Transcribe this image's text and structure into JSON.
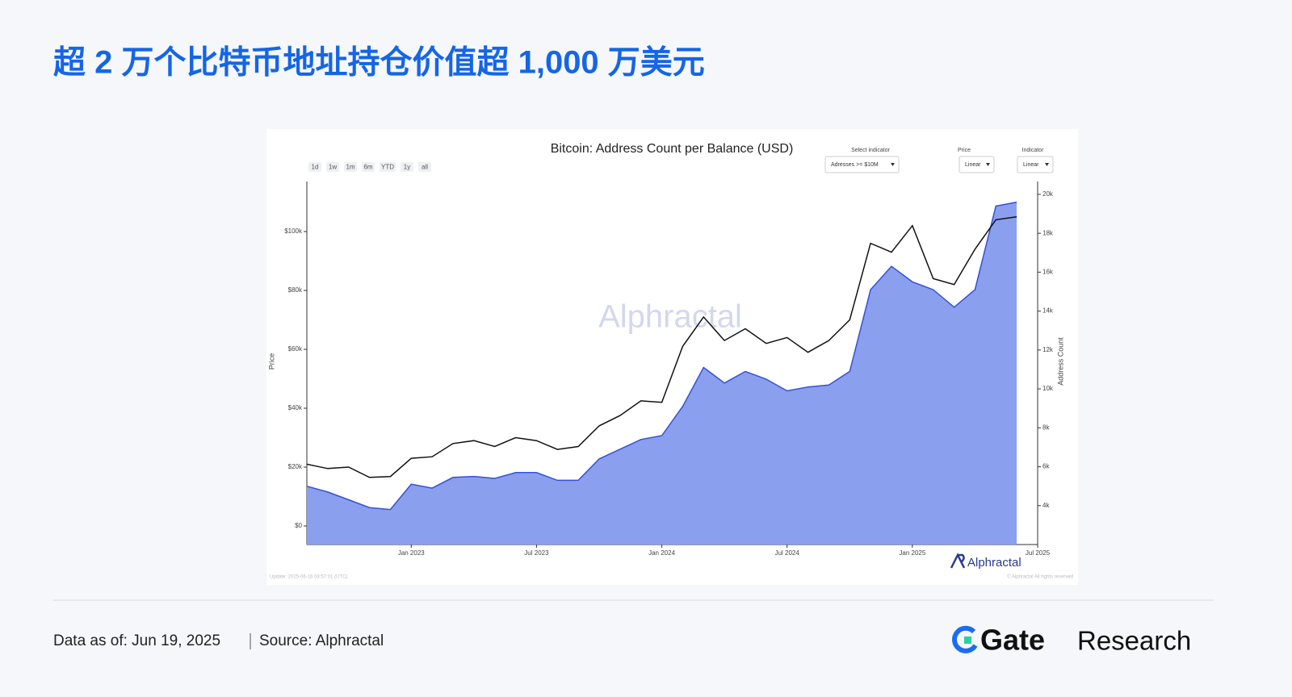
{
  "header": {
    "title": "超 2 万个比特币地址持仓价值超 1,000 万美元"
  },
  "panel": {
    "range_buttons": [
      "1d",
      "1w",
      "1m",
      "6m",
      "YTD",
      "1y",
      "all"
    ],
    "controls": [
      {
        "label": "Select indicator",
        "value": "Adresses >= $10M"
      },
      {
        "label": "Price",
        "value": "Linear"
      },
      {
        "label": "Indicator",
        "value": "Linear"
      }
    ],
    "watermark": "Alphractal",
    "brand": "Alphractal",
    "update_note": "Update: 2025-06-16 08:57:01 (UTC)",
    "copyright": "© Alphractal All rights reserved"
  },
  "chart_data": {
    "type": "line",
    "title": "Bitcoin: Address Count per Balance (USD)",
    "ylabel": "Price",
    "y2label": "Address Count",
    "x": [
      "2022-08",
      "2022-09",
      "2022-10",
      "2022-11",
      "2022-12",
      "2023-01",
      "2023-02",
      "2023-03",
      "2023-04",
      "2023-05",
      "2023-06",
      "2023-07",
      "2023-08",
      "2023-09",
      "2023-10",
      "2023-11",
      "2023-12",
      "2024-01",
      "2024-02",
      "2024-03",
      "2024-04",
      "2024-05",
      "2024-06",
      "2024-07",
      "2024-08",
      "2024-09",
      "2024-10",
      "2024-11",
      "2024-12",
      "2025-01",
      "2025-02",
      "2025-03",
      "2025-04",
      "2025-05",
      "2025-06"
    ],
    "xlim": [
      "2022-08",
      "2025-07"
    ],
    "xticks": [
      {
        "value": "2023-01",
        "label": "Jan 2023"
      },
      {
        "value": "2023-07",
        "label": "Jul 2023"
      },
      {
        "value": "2024-01",
        "label": "Jan 2024"
      },
      {
        "value": "2024-07",
        "label": "Jul 2024"
      },
      {
        "value": "2025-01",
        "label": "Jan 2025"
      },
      {
        "value": "2025-07",
        "label": "Jul 2025"
      }
    ],
    "ylim": [
      -6300,
      117000
    ],
    "yticks": [
      {
        "value": 0,
        "label": "$0"
      },
      {
        "value": 20000,
        "label": "$20k"
      },
      {
        "value": 40000,
        "label": "$40k"
      },
      {
        "value": 60000,
        "label": "$60k"
      },
      {
        "value": 80000,
        "label": "$80k"
      },
      {
        "value": 100000,
        "label": "$100k"
      }
    ],
    "y2lim": [
      2000,
      20660
    ],
    "y2ticks": [
      {
        "value": 4000,
        "label": "4k"
      },
      {
        "value": 6000,
        "label": "6k"
      },
      {
        "value": 8000,
        "label": "8k"
      },
      {
        "value": 10000,
        "label": "10k"
      },
      {
        "value": 12000,
        "label": "12k"
      },
      {
        "value": 14000,
        "label": "14k"
      },
      {
        "value": 16000,
        "label": "16k"
      },
      {
        "value": 18000,
        "label": "18k"
      },
      {
        "value": 20000,
        "label": "20k"
      }
    ],
    "series": [
      {
        "name": "Address Count",
        "type": "area",
        "axis": "y2",
        "color": "#8a9fee",
        "line_color": "#3650d4",
        "values": [
          5000,
          4700,
          4300,
          3900,
          3800,
          5100,
          4900,
          5450,
          5500,
          5400,
          5700,
          5700,
          5300,
          5300,
          6400,
          6900,
          7400,
          7600,
          9100,
          11100,
          10300,
          10900,
          10500,
          9900,
          10100,
          10200,
          10900,
          15100,
          16300,
          15500,
          15100,
          14200,
          15100,
          19400,
          19600
        ]
      },
      {
        "name": "Price",
        "type": "line",
        "axis": "y",
        "color": "#111111",
        "values": [
          21000,
          19500,
          20000,
          16500,
          16800,
          23000,
          23500,
          28000,
          29000,
          27000,
          30000,
          29000,
          26000,
          27000,
          34000,
          37500,
          42500,
          42000,
          61000,
          71000,
          63000,
          67000,
          62000,
          64000,
          59000,
          63000,
          70000,
          96000,
          93000,
          102000,
          84000,
          82000,
          94000,
          104000,
          105000
        ]
      }
    ]
  },
  "footer": {
    "date": "Data as of: Jun 19, 2025",
    "source": "Source: Alphractal",
    "logo_word": "Gate",
    "logo_sub": "Research"
  }
}
